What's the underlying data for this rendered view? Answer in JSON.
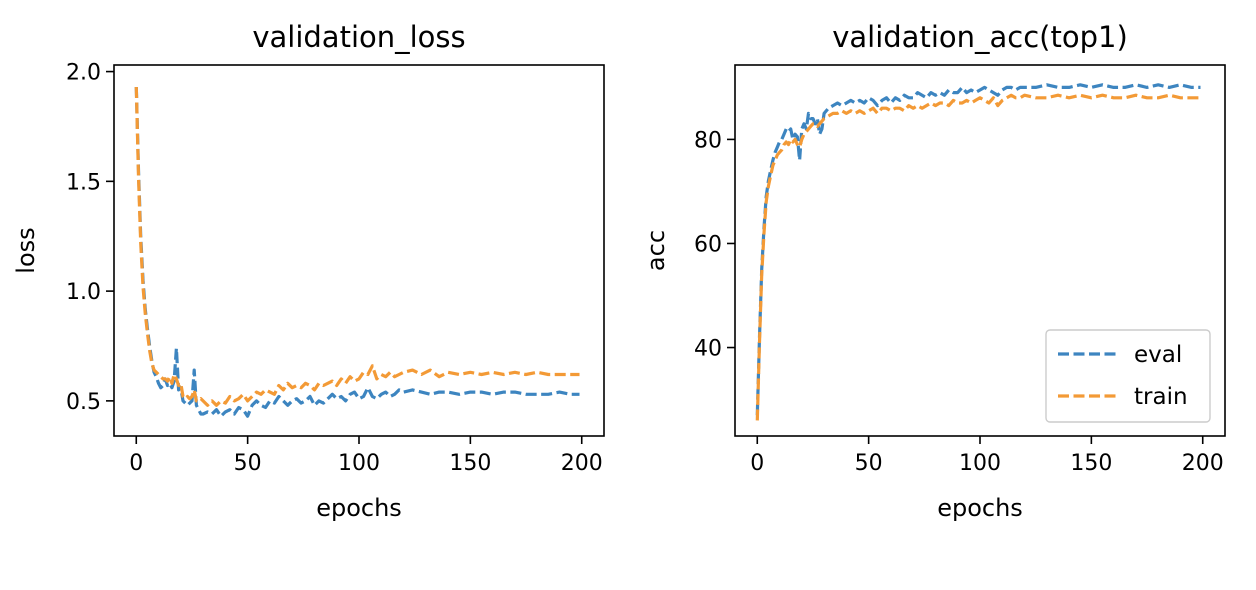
{
  "colors": {
    "eval": "#3d85c0",
    "train": "#f39a36"
  },
  "chart_data": [
    {
      "type": "line",
      "title": "validation_loss",
      "xlabel": "epochs",
      "ylabel": "loss",
      "xlim": [
        -10,
        210
      ],
      "ylim": [
        0.34,
        2.03
      ],
      "xticks": [
        0,
        50,
        100,
        150,
        200
      ],
      "yticks": [
        0.5,
        1.0,
        1.5,
        2.0
      ],
      "ytick_format": 1,
      "grid": false,
      "legend": null,
      "series": [
        {
          "key": "eval",
          "x": [
            0,
            1,
            2,
            3,
            4,
            5,
            6,
            7,
            8,
            9,
            10,
            11,
            12,
            13,
            14,
            15,
            16,
            17,
            18,
            19,
            20,
            21,
            22,
            23,
            24,
            25,
            26,
            27,
            28,
            29,
            30,
            32,
            34,
            36,
            38,
            40,
            42,
            44,
            46,
            48,
            50,
            52,
            54,
            56,
            58,
            60,
            62,
            64,
            66,
            68,
            70,
            72,
            74,
            76,
            78,
            80,
            82,
            84,
            86,
            88,
            90,
            92,
            94,
            96,
            98,
            100,
            102,
            104,
            106,
            108,
            110,
            112,
            114,
            116,
            118,
            120,
            124,
            128,
            132,
            136,
            140,
            145,
            150,
            155,
            160,
            165,
            170,
            175,
            180,
            185,
            190,
            195,
            199
          ],
          "y": [
            1.93,
            1.55,
            1.25,
            1.05,
            0.92,
            0.83,
            0.75,
            0.68,
            0.63,
            0.61,
            0.58,
            0.56,
            0.57,
            0.6,
            0.57,
            0.58,
            0.56,
            0.59,
            0.74,
            0.55,
            0.56,
            0.5,
            0.49,
            0.48,
            0.49,
            0.5,
            0.64,
            0.48,
            0.46,
            0.44,
            0.44,
            0.45,
            0.44,
            0.46,
            0.43,
            0.45,
            0.46,
            0.44,
            0.47,
            0.46,
            0.43,
            0.48,
            0.5,
            0.48,
            0.47,
            0.5,
            0.49,
            0.52,
            0.5,
            0.48,
            0.5,
            0.51,
            0.49,
            0.5,
            0.52,
            0.48,
            0.5,
            0.49,
            0.51,
            0.53,
            0.51,
            0.52,
            0.5,
            0.53,
            0.54,
            0.51,
            0.52,
            0.56,
            0.52,
            0.51,
            0.53,
            0.54,
            0.52,
            0.53,
            0.55,
            0.54,
            0.55,
            0.54,
            0.53,
            0.54,
            0.54,
            0.53,
            0.54,
            0.54,
            0.53,
            0.54,
            0.54,
            0.53,
            0.53,
            0.53,
            0.54,
            0.53,
            0.53
          ]
        },
        {
          "key": "train",
          "x": [
            0,
            1,
            2,
            3,
            4,
            5,
            6,
            7,
            8,
            9,
            10,
            11,
            12,
            13,
            14,
            15,
            16,
            17,
            18,
            19,
            20,
            21,
            22,
            23,
            24,
            25,
            26,
            27,
            28,
            29,
            30,
            32,
            34,
            36,
            38,
            40,
            42,
            44,
            46,
            48,
            50,
            52,
            54,
            56,
            58,
            60,
            62,
            64,
            66,
            68,
            70,
            72,
            74,
            76,
            78,
            80,
            82,
            84,
            86,
            88,
            90,
            92,
            94,
            96,
            98,
            100,
            102,
            104,
            106,
            108,
            110,
            112,
            114,
            116,
            118,
            120,
            124,
            128,
            132,
            136,
            140,
            145,
            150,
            155,
            160,
            165,
            170,
            175,
            180,
            185,
            190,
            195,
            199
          ],
          "y": [
            1.93,
            1.52,
            1.22,
            1.02,
            0.9,
            0.81,
            0.73,
            0.67,
            0.64,
            0.63,
            0.62,
            0.61,
            0.6,
            0.6,
            0.59,
            0.61,
            0.58,
            0.62,
            0.6,
            0.57,
            0.58,
            0.52,
            0.51,
            0.52,
            0.51,
            0.52,
            0.55,
            0.5,
            0.5,
            0.51,
            0.5,
            0.48,
            0.5,
            0.48,
            0.5,
            0.49,
            0.52,
            0.5,
            0.51,
            0.53,
            0.5,
            0.52,
            0.54,
            0.53,
            0.55,
            0.54,
            0.53,
            0.57,
            0.55,
            0.58,
            0.56,
            0.57,
            0.56,
            0.58,
            0.57,
            0.55,
            0.58,
            0.57,
            0.58,
            0.59,
            0.57,
            0.6,
            0.58,
            0.61,
            0.59,
            0.6,
            0.63,
            0.62,
            0.66,
            0.6,
            0.62,
            0.61,
            0.63,
            0.61,
            0.62,
            0.63,
            0.64,
            0.62,
            0.64,
            0.61,
            0.63,
            0.62,
            0.63,
            0.62,
            0.63,
            0.62,
            0.63,
            0.62,
            0.63,
            0.62,
            0.62,
            0.62,
            0.62
          ]
        }
      ]
    },
    {
      "type": "line",
      "title": "validation_acc(top1)",
      "xlabel": "epochs",
      "ylabel": "acc",
      "xlim": [
        -10,
        210
      ],
      "ylim": [
        23,
        94.3
      ],
      "xticks": [
        0,
        50,
        100,
        150,
        200
      ],
      "yticks": [
        40,
        60,
        80
      ],
      "ytick_format": 0,
      "grid": false,
      "legend": {
        "location": "lower-right",
        "entries": [
          "eval",
          "train"
        ]
      },
      "series": [
        {
          "key": "eval",
          "name": "eval",
          "x": [
            0,
            1,
            2,
            3,
            4,
            5,
            6,
            7,
            8,
            9,
            10,
            11,
            12,
            13,
            14,
            15,
            16,
            17,
            18,
            19,
            20,
            21,
            22,
            23,
            24,
            25,
            26,
            27,
            28,
            29,
            30,
            32,
            34,
            36,
            38,
            40,
            42,
            44,
            46,
            48,
            50,
            52,
            54,
            56,
            58,
            60,
            62,
            64,
            66,
            68,
            70,
            72,
            74,
            76,
            78,
            80,
            82,
            84,
            86,
            88,
            90,
            92,
            94,
            96,
            98,
            100,
            102,
            104,
            106,
            108,
            110,
            112,
            114,
            116,
            118,
            120,
            125,
            130,
            135,
            140,
            145,
            150,
            155,
            160,
            165,
            170,
            175,
            180,
            185,
            190,
            195,
            199
          ],
          "y": [
            27,
            42,
            55,
            63,
            69,
            72,
            74,
            76,
            77.5,
            78.5,
            79.5,
            80,
            81,
            82,
            81.5,
            82,
            80,
            81,
            80.5,
            76,
            82,
            83,
            82,
            85,
            84,
            84,
            83,
            84,
            81,
            82,
            85,
            86,
            86.5,
            87,
            86.5,
            87,
            87.5,
            87,
            87.5,
            87,
            88,
            87.5,
            86.5,
            87.5,
            88,
            87,
            88,
            87.5,
            88.5,
            88,
            88,
            89,
            88.5,
            88,
            89,
            88.5,
            89,
            88.5,
            89.5,
            89,
            89,
            90,
            89,
            89.5,
            89,
            89.5,
            90,
            89.5,
            89,
            88.5,
            89.5,
            90,
            90,
            89.5,
            90,
            90,
            90,
            90.5,
            90,
            90,
            90.5,
            90,
            90.5,
            90,
            90,
            90.5,
            90,
            90.5,
            90,
            90.5,
            90,
            90
          ]
        },
        {
          "key": "train",
          "name": "train",
          "x": [
            0,
            1,
            2,
            3,
            4,
            5,
            6,
            7,
            8,
            9,
            10,
            11,
            12,
            13,
            14,
            15,
            16,
            17,
            18,
            19,
            20,
            21,
            22,
            23,
            24,
            25,
            26,
            27,
            28,
            29,
            30,
            32,
            34,
            36,
            38,
            40,
            42,
            44,
            46,
            48,
            50,
            52,
            54,
            56,
            58,
            60,
            62,
            64,
            66,
            68,
            70,
            72,
            74,
            76,
            78,
            80,
            82,
            84,
            86,
            88,
            90,
            92,
            94,
            96,
            98,
            100,
            102,
            104,
            106,
            108,
            110,
            112,
            114,
            116,
            118,
            120,
            125,
            130,
            135,
            140,
            145,
            150,
            155,
            160,
            165,
            170,
            175,
            180,
            185,
            190,
            195,
            199
          ],
          "y": [
            26,
            41,
            54,
            62,
            68,
            71,
            73,
            75,
            76,
            77,
            77.5,
            78,
            79,
            79.5,
            79,
            80,
            79.5,
            80,
            79,
            78.5,
            80,
            81,
            81.5,
            82,
            82.5,
            83,
            83,
            82.5,
            83,
            83.5,
            84,
            84.5,
            85,
            85,
            85.5,
            85,
            85.5,
            85,
            85.5,
            85,
            85.5,
            86,
            85,
            86,
            86,
            85.5,
            86,
            86,
            85.5,
            86.5,
            86,
            86.5,
            86,
            86.5,
            87,
            86.5,
            87,
            87,
            86.5,
            87.5,
            87,
            87,
            87.5,
            87,
            87.5,
            88,
            87.5,
            87,
            88,
            86.5,
            87.5,
            88,
            88.5,
            88,
            88,
            88.5,
            88,
            88,
            88.5,
            88,
            88.5,
            88,
            88.5,
            88,
            88,
            88.5,
            88,
            88,
            88.5,
            88,
            88,
            88
          ]
        }
      ]
    }
  ]
}
